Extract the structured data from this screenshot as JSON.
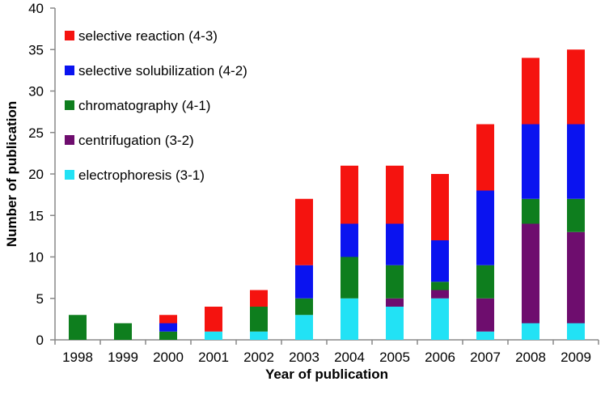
{
  "chart_data": {
    "type": "bar",
    "stacked": true,
    "title": "",
    "xlabel": "Year of publication",
    "ylabel": "Number of publication",
    "ylim": [
      0,
      40
    ],
    "yticks": [
      0,
      5,
      10,
      15,
      20,
      25,
      30,
      35,
      40
    ],
    "grid": false,
    "legend_position": "top-left",
    "categories": [
      "1998",
      "1999",
      "2000",
      "2001",
      "2002",
      "2003",
      "2004",
      "2005",
      "2006",
      "2007",
      "2008",
      "2009"
    ],
    "series": [
      {
        "name": "electrophoresis (3-1)",
        "color": "#22E2F5",
        "values": [
          0,
          0,
          0,
          1,
          1,
          3,
          5,
          4,
          5,
          1,
          2,
          2
        ]
      },
      {
        "name": "centrifugation (3-2)",
        "color": "#6E0D6E",
        "values": [
          0,
          0,
          0,
          0,
          0,
          0,
          0,
          1,
          1,
          4,
          12,
          11
        ]
      },
      {
        "name": "chromatography (4-1)",
        "color": "#0E7E1E",
        "values": [
          3,
          2,
          1,
          0,
          3,
          2,
          5,
          4,
          1,
          4,
          3,
          4
        ]
      },
      {
        "name": "selective solubilization (4-2)",
        "color": "#0A13F0",
        "values": [
          0,
          0,
          1,
          0,
          0,
          4,
          4,
          5,
          5,
          9,
          9,
          9
        ]
      },
      {
        "name": "selective reaction (4-3)",
        "color": "#F5130F",
        "values": [
          0,
          0,
          1,
          3,
          2,
          8,
          7,
          7,
          8,
          8,
          8,
          9
        ]
      }
    ]
  }
}
